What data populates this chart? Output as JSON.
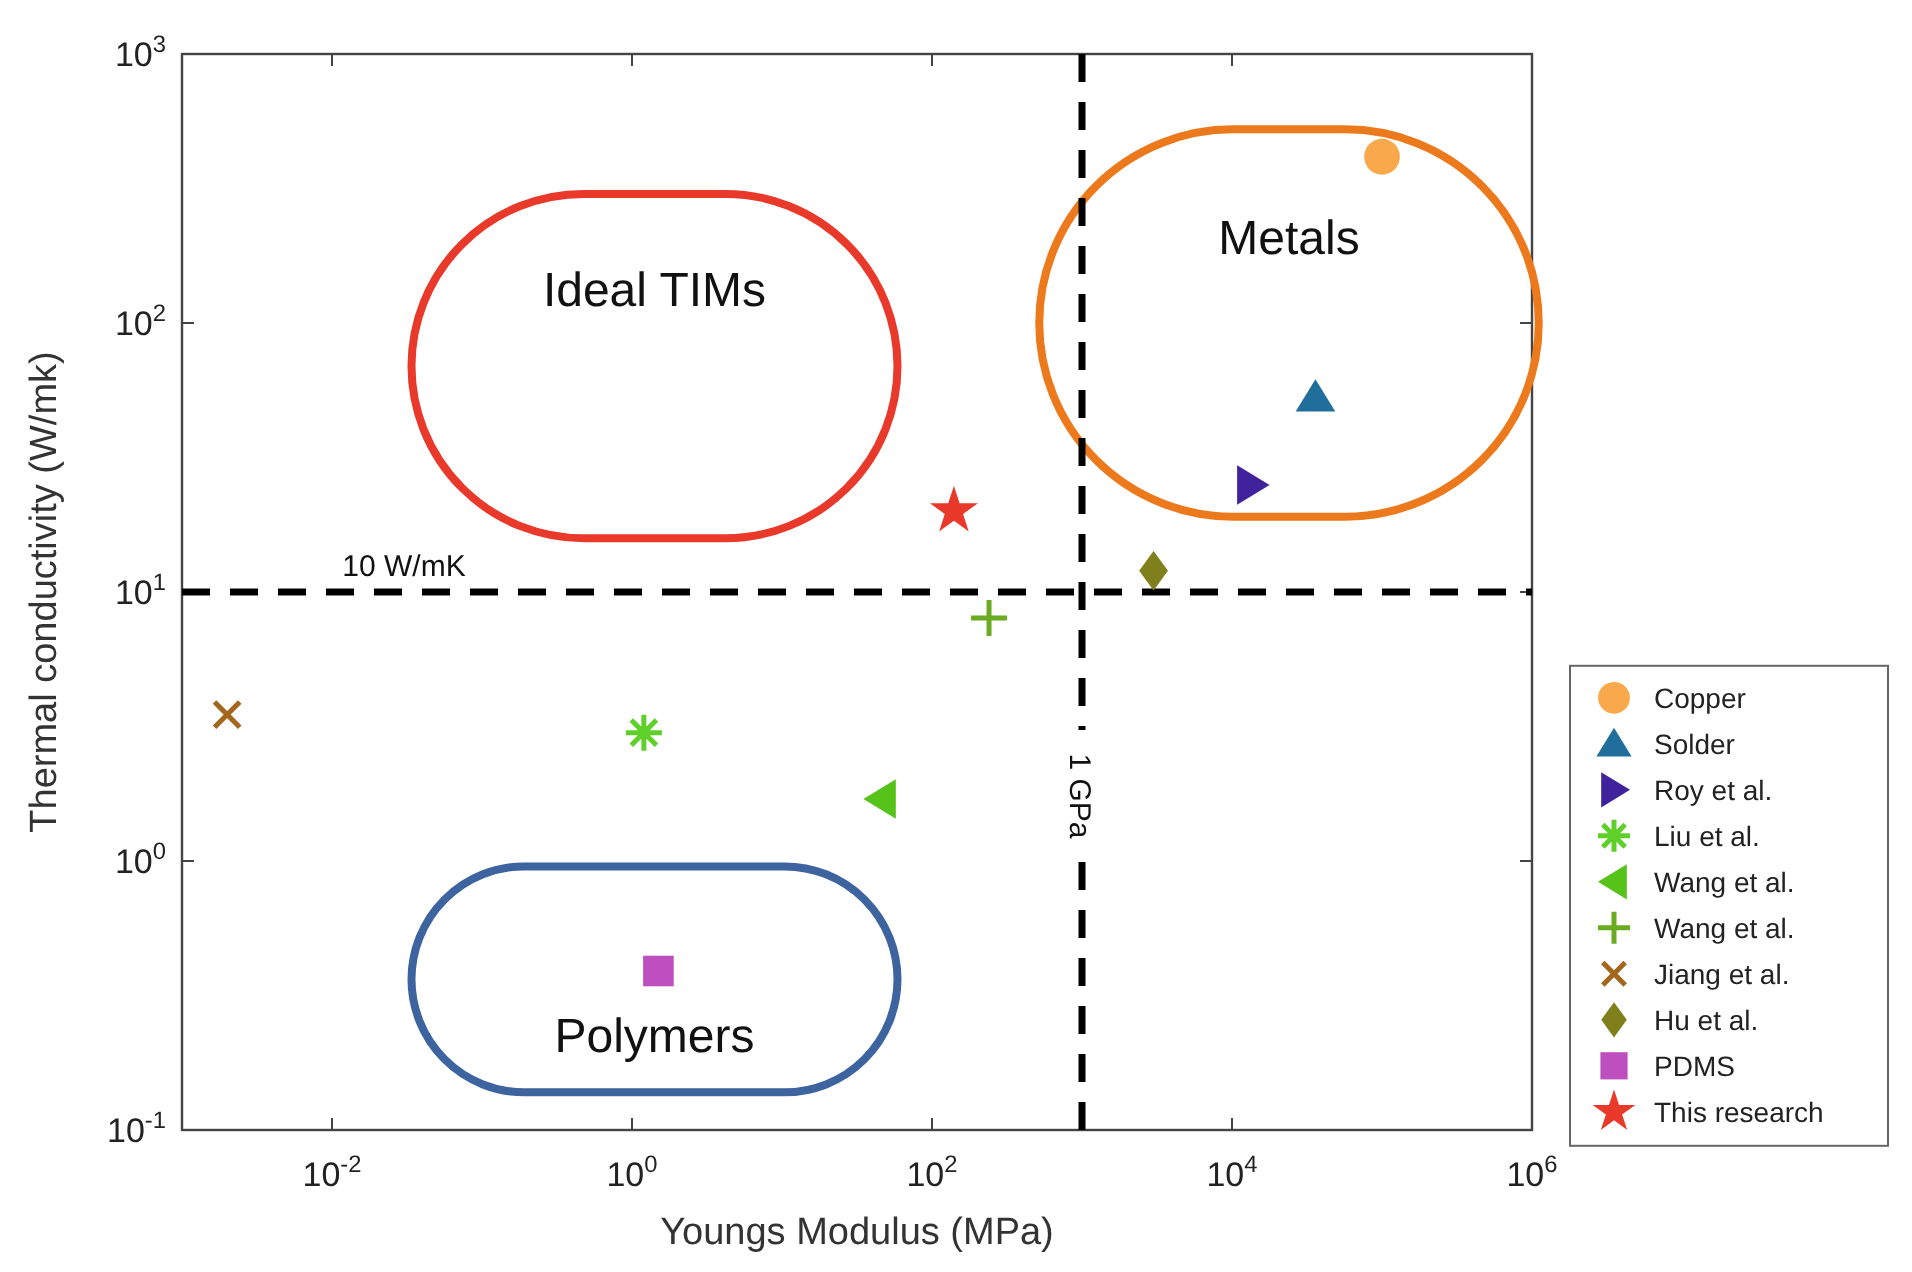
{
  "chart_data": {
    "type": "scatter",
    "xlabel": "Youngs Modulus (MPa)",
    "ylabel": "Thermal conductivity (W/mk)",
    "log": "xy",
    "grid": false,
    "legend": "right",
    "xlim": [
      0.001,
      1000000
    ],
    "ylim": [
      0.1,
      1000
    ],
    "xticks": [
      {
        "value": 0.01,
        "label": "10$^{-2}$"
      },
      {
        "value": 1,
        "label": "10$^{0}$"
      },
      {
        "value": 100,
        "label": "10$^{2}$"
      },
      {
        "value": 10000,
        "label": "10$^{4}$"
      },
      {
        "value": 1000000,
        "label": "10$^{6}$"
      }
    ],
    "yticks": [
      {
        "value": 0.1,
        "label": "10$^{-1}$"
      },
      {
        "value": 1,
        "label": "10$^{0}$"
      },
      {
        "value": 10,
        "label": "10$^{1}$"
      },
      {
        "value": 100,
        "label": "10$^{2}$"
      },
      {
        "value": 1000,
        "label": "10$^{3}$"
      }
    ],
    "series": [
      {
        "name": "Copper",
        "color": "#f9a94b",
        "marker": "circle",
        "x": [
          100000
        ],
        "values": [
          415
        ]
      },
      {
        "name": "Solder",
        "color": "#1f6e9c",
        "marker": "triangle",
        "x": [
          36000
        ],
        "values": [
          53
        ]
      },
      {
        "name": "Roy et al.",
        "color": "#40239c",
        "marker": "triangle-right",
        "x": [
          13500
        ],
        "values": [
          25
        ]
      },
      {
        "name": "Liu et al.",
        "color": "#5fcf2a",
        "x": [
          1.2
        ],
        "values": [
          3
        ]
      },
      {
        "name": "Wang et al.",
        "color": "#56c21a",
        "marker": "triangle-left",
        "x": [
          46
        ],
        "values": [
          1.7
        ]
      },
      {
        "name": "Wang et al.",
        "color": "#6aab22",
        "marker": "plus",
        "x": [
          240
        ],
        "values": [
          8
        ]
      },
      {
        "name": "Jiang et al.",
        "color": "#a3661b",
        "marker": "cross",
        "x": [
          0.002
        ],
        "values": [
          3.5
        ]
      },
      {
        "name": "Hu et al.",
        "color": "#7f801b",
        "marker": "diamond",
        "x": [
          3000
        ],
        "values": [
          12
        ]
      },
      {
        "name": "PDMS",
        "color": "#bd4fbf",
        "marker": "square",
        "x": [
          1.5
        ],
        "values": [
          0.39
        ]
      },
      {
        "name": "This research",
        "color": "#e8392a",
        "marker": "star",
        "x": [
          140
        ],
        "values": [
          20
        ]
      }
    ],
    "ref_lines": [
      {
        "axis": "y",
        "value": 10,
        "label": "10 W/mK",
        "color": "#000000",
        "line_style": "dashed"
      },
      {
        "axis": "x",
        "value": 1000,
        "label": "1 GPa",
        "color": "#000000",
        "line_style": "dashed"
      }
    ],
    "annotations": [
      "Ideal TIMs",
      "Metals",
      "Polymers"
    ]
  }
}
